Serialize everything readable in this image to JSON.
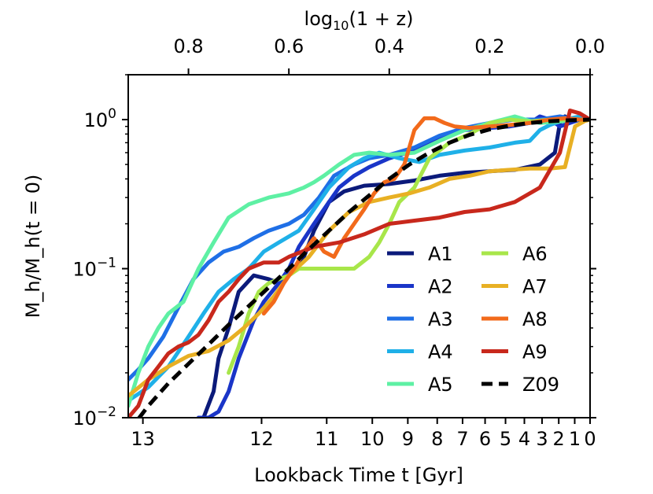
{
  "chart_data": {
    "type": "line",
    "xlabel": "Lookback Time t [Gyr]",
    "top_xlabel_prefix": "log",
    "top_xlabel_sub": "10",
    "top_xlabel_suffix": "(1 + z)",
    "ylabel": "M_h/M_h(t = 0)",
    "xscale": "log10(1 + z)",
    "yscale": "log",
    "ylim": [
      0.01,
      2.0
    ],
    "xlim_log1pz": [
      0.92,
      0.0
    ],
    "top_ticks": [
      {
        "value": 0.8,
        "label": "0.8"
      },
      {
        "value": 0.6,
        "label": "0.6"
      },
      {
        "value": 0.4,
        "label": "0.4"
      },
      {
        "value": 0.2,
        "label": "0.2"
      },
      {
        "value": 0.0,
        "label": "0.0"
      }
    ],
    "bottom_ticks": [
      {
        "gyr": 13,
        "label": "13"
      },
      {
        "gyr": 12,
        "label": "12"
      },
      {
        "gyr": 11,
        "label": "11"
      },
      {
        "gyr": 10,
        "label": "10"
      },
      {
        "gyr": 9,
        "label": "9"
      },
      {
        "gyr": 8,
        "label": "8"
      },
      {
        "gyr": 7,
        "label": "7"
      },
      {
        "gyr": 6,
        "label": "6"
      },
      {
        "gyr": 5,
        "label": "5"
      },
      {
        "gyr": 4,
        "label": "4"
      },
      {
        "gyr": 3,
        "label": "3"
      },
      {
        "gyr": 2,
        "label": "2"
      },
      {
        "gyr": 1,
        "label": "1"
      },
      {
        "gyr": 0,
        "label": "0"
      }
    ],
    "y_ticks": [
      {
        "value": 1.0,
        "base": "10",
        "exp": "0"
      },
      {
        "value": 0.1,
        "base": "10",
        "exp": "−1"
      },
      {
        "value": 0.01,
        "base": "10",
        "exp": "−2"
      }
    ],
    "legend_position": "lower-right",
    "series": [
      {
        "name": "A1",
        "color": "#0b1a7a",
        "dashed": false,
        "x": [
          0.77,
          0.75,
          0.74,
          0.72,
          0.7,
          0.67,
          0.64,
          0.62,
          0.6,
          0.57,
          0.55,
          0.52,
          0.49,
          0.45,
          0.4,
          0.35,
          0.3,
          0.25,
          0.2,
          0.15,
          0.1,
          0.07,
          0.06,
          0.05,
          0.04,
          0.03,
          0.02,
          0.01,
          0.0
        ],
        "y": [
          0.01,
          0.015,
          0.025,
          0.04,
          0.07,
          0.09,
          0.085,
          0.08,
          0.09,
          0.12,
          0.18,
          0.28,
          0.33,
          0.36,
          0.37,
          0.39,
          0.42,
          0.44,
          0.45,
          0.46,
          0.5,
          0.6,
          0.95,
          1.05,
          1.0,
          1.0,
          1.0,
          1.0,
          1.0
        ]
      },
      {
        "name": "A2",
        "color": "#1a35c8",
        "dashed": false,
        "x": [
          0.78,
          0.76,
          0.74,
          0.72,
          0.7,
          0.67,
          0.65,
          0.62,
          0.6,
          0.58,
          0.55,
          0.52,
          0.5,
          0.47,
          0.44,
          0.4,
          0.35,
          0.3,
          0.25,
          0.2,
          0.16,
          0.12,
          0.1,
          0.08,
          0.06,
          0.04,
          0.02,
          0.0
        ],
        "y": [
          0.01,
          0.01,
          0.011,
          0.015,
          0.025,
          0.045,
          0.06,
          0.08,
          0.1,
          0.14,
          0.2,
          0.28,
          0.35,
          0.42,
          0.48,
          0.55,
          0.62,
          0.75,
          0.85,
          0.88,
          0.9,
          0.95,
          1.05,
          1.0,
          0.9,
          0.95,
          1.0,
          1.0
        ]
      },
      {
        "name": "A3",
        "color": "#1f6fe6",
        "dashed": false,
        "x": [
          0.92,
          0.9,
          0.88,
          0.85,
          0.82,
          0.79,
          0.76,
          0.73,
          0.7,
          0.67,
          0.64,
          0.6,
          0.57,
          0.54,
          0.51,
          0.47,
          0.44,
          0.4,
          0.35,
          0.3,
          0.25,
          0.2,
          0.15,
          0.1,
          0.06,
          0.03,
          0.0
        ],
        "y": [
          0.018,
          0.021,
          0.025,
          0.035,
          0.055,
          0.085,
          0.11,
          0.13,
          0.14,
          0.16,
          0.18,
          0.2,
          0.23,
          0.3,
          0.42,
          0.5,
          0.55,
          0.58,
          0.65,
          0.78,
          0.88,
          0.95,
          1.0,
          1.0,
          1.05,
          1.0,
          1.0
        ]
      },
      {
        "name": "A4",
        "color": "#1fb0e8",
        "dashed": false,
        "x": [
          0.92,
          0.88,
          0.84,
          0.8,
          0.77,
          0.74,
          0.71,
          0.68,
          0.65,
          0.62,
          0.58,
          0.55,
          0.52,
          0.48,
          0.45,
          0.42,
          0.38,
          0.34,
          0.3,
          0.25,
          0.2,
          0.15,
          0.12,
          0.1,
          0.08,
          0.05,
          0.02,
          0.0
        ],
        "y": [
          0.013,
          0.016,
          0.022,
          0.035,
          0.05,
          0.07,
          0.085,
          0.1,
          0.13,
          0.15,
          0.18,
          0.25,
          0.35,
          0.48,
          0.55,
          0.6,
          0.55,
          0.52,
          0.58,
          0.62,
          0.65,
          0.7,
          0.72,
          0.85,
          0.92,
          1.0,
          1.05,
          1.0
        ]
      },
      {
        "name": "A5",
        "color": "#5ef0a4",
        "dashed": false,
        "x": [
          0.92,
          0.9,
          0.88,
          0.86,
          0.84,
          0.81,
          0.78,
          0.75,
          0.72,
          0.68,
          0.64,
          0.6,
          0.57,
          0.55,
          0.53,
          0.5,
          0.47,
          0.44,
          0.4,
          0.35,
          0.3,
          0.25,
          0.2,
          0.15,
          0.12,
          0.1,
          0.06,
          0.03,
          0.0
        ],
        "y": [
          0.012,
          0.02,
          0.03,
          0.04,
          0.05,
          0.06,
          0.1,
          0.15,
          0.22,
          0.27,
          0.3,
          0.32,
          0.35,
          0.38,
          0.42,
          0.5,
          0.58,
          0.6,
          0.58,
          0.6,
          0.72,
          0.85,
          0.95,
          1.05,
          0.98,
          0.95,
          0.97,
          1.0,
          1.0
        ]
      },
      {
        "name": "A6",
        "color": "#a8e64a",
        "dashed": false,
        "x": [
          0.72,
          0.7,
          0.68,
          0.66,
          0.64,
          0.62,
          0.6,
          0.58,
          0.56,
          0.54,
          0.52,
          0.5,
          0.47,
          0.44,
          0.42,
          0.4,
          0.38,
          0.35,
          0.32,
          0.28,
          0.24,
          0.2,
          0.16,
          0.12,
          0.08,
          0.05,
          0.02,
          0.0
        ],
        "y": [
          0.02,
          0.03,
          0.05,
          0.07,
          0.08,
          0.085,
          0.09,
          0.1,
          0.1,
          0.1,
          0.1,
          0.1,
          0.1,
          0.12,
          0.15,
          0.2,
          0.28,
          0.35,
          0.55,
          0.7,
          0.8,
          0.95,
          1.0,
          0.97,
          1.0,
          1.0,
          1.0,
          1.0
        ]
      },
      {
        "name": "A7",
        "color": "#e8b024",
        "dashed": false,
        "x": [
          0.92,
          0.88,
          0.84,
          0.8,
          0.76,
          0.72,
          0.69,
          0.66,
          0.63,
          0.6,
          0.56,
          0.52,
          0.48,
          0.44,
          0.4,
          0.36,
          0.32,
          0.28,
          0.24,
          0.2,
          0.16,
          0.12,
          0.08,
          0.05,
          0.03,
          0.01,
          0.0
        ],
        "y": [
          0.014,
          0.018,
          0.022,
          0.026,
          0.028,
          0.033,
          0.04,
          0.05,
          0.065,
          0.09,
          0.12,
          0.18,
          0.24,
          0.28,
          0.3,
          0.32,
          0.35,
          0.4,
          0.42,
          0.45,
          0.46,
          0.47,
          0.47,
          0.48,
          0.9,
          0.98,
          1.0
        ]
      },
      {
        "name": "A8",
        "color": "#f26a1b",
        "dashed": false,
        "x": [
          0.65,
          0.63,
          0.61,
          0.59,
          0.57,
          0.55,
          0.53,
          0.51,
          0.49,
          0.47,
          0.45,
          0.43,
          0.41,
          0.39,
          0.37,
          0.35,
          0.33,
          0.31,
          0.29,
          0.27,
          0.24,
          0.2,
          0.16,
          0.12,
          0.08,
          0.05,
          0.02,
          0.0
        ],
        "y": [
          0.05,
          0.06,
          0.08,
          0.1,
          0.13,
          0.16,
          0.13,
          0.12,
          0.16,
          0.2,
          0.25,
          0.32,
          0.38,
          0.4,
          0.5,
          0.85,
          1.02,
          1.02,
          0.95,
          0.9,
          0.88,
          0.9,
          0.92,
          0.95,
          1.0,
          1.02,
          1.0,
          1.0
        ]
      },
      {
        "name": "A9",
        "color": "#c8281c",
        "dashed": false,
        "x": [
          0.92,
          0.9,
          0.88,
          0.86,
          0.84,
          0.82,
          0.8,
          0.78,
          0.76,
          0.74,
          0.72,
          0.7,
          0.68,
          0.65,
          0.62,
          0.6,
          0.55,
          0.5,
          0.45,
          0.4,
          0.35,
          0.3,
          0.25,
          0.2,
          0.15,
          0.1,
          0.06,
          0.04,
          0.02,
          0.0
        ],
        "y": [
          0.01,
          0.012,
          0.018,
          0.022,
          0.027,
          0.03,
          0.032,
          0.036,
          0.045,
          0.06,
          0.07,
          0.085,
          0.1,
          0.11,
          0.11,
          0.12,
          0.14,
          0.15,
          0.17,
          0.2,
          0.21,
          0.22,
          0.24,
          0.25,
          0.28,
          0.35,
          0.6,
          1.15,
          1.1,
          1.0
        ]
      },
      {
        "name": "Z09",
        "color": "#000000",
        "dashed": true,
        "x": [
          0.92,
          0.88,
          0.84,
          0.8,
          0.76,
          0.72,
          0.68,
          0.64,
          0.6,
          0.56,
          0.52,
          0.48,
          0.44,
          0.4,
          0.36,
          0.32,
          0.28,
          0.24,
          0.2,
          0.16,
          0.12,
          0.08,
          0.04,
          0.0
        ],
        "y": [
          0.008,
          0.012,
          0.017,
          0.023,
          0.031,
          0.042,
          0.056,
          0.075,
          0.1,
          0.135,
          0.18,
          0.24,
          0.31,
          0.4,
          0.5,
          0.6,
          0.7,
          0.79,
          0.86,
          0.91,
          0.95,
          0.975,
          0.99,
          1.0
        ]
      }
    ]
  }
}
